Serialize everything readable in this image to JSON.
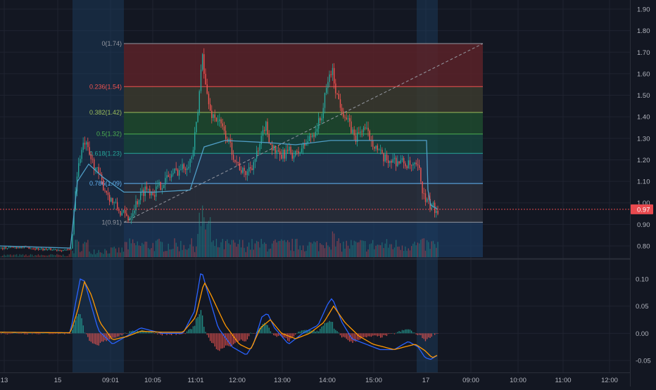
{
  "colors": {
    "background": "#131722",
    "grid": "#1f2330",
    "axis_text": "#b2b5be",
    "candle_up": "#26a69a",
    "candle_down": "#ef5350",
    "vwap": "#4f9dc5",
    "session_shade": "#1d4163",
    "current_price": "#e84a4f",
    "macd_line": "#2962ff",
    "signal_line": "#ff9800",
    "trend_line": "#9598a1"
  },
  "price_axis": {
    "ticks": [
      "1.90",
      "1.80",
      "1.70",
      "1.60",
      "1.50",
      "1.40",
      "1.30",
      "1.20",
      "1.10",
      "1.00",
      "0.90",
      "0.80"
    ],
    "tick_values": [
      1.9,
      1.8,
      1.7,
      1.6,
      1.5,
      1.4,
      1.3,
      1.2,
      1.1,
      1.0,
      0.9,
      0.8
    ]
  },
  "current_price": {
    "label": "0.97",
    "value": 0.97
  },
  "macd_axis": {
    "ticks": [
      "0.10",
      "0.05",
      "0.00",
      "-0.05"
    ],
    "tick_values": [
      0.1,
      0.05,
      0.0,
      -0.05
    ]
  },
  "time_axis": {
    "labels": [
      "13",
      "15",
      "09:01",
      "10:05",
      "11:01",
      "12:00",
      "13:00",
      "14:00",
      "15:00",
      "17",
      "09:00",
      "10:00",
      "11:00",
      "12:00"
    ]
  },
  "fibonacci": {
    "levels": [
      {
        "label": "0(1.74)",
        "ratio": 0,
        "price": 1.74,
        "color": "#9598a1",
        "fill": "#5b2228"
      },
      {
        "label": "0.236(1.54)",
        "ratio": 0.236,
        "price": 1.54,
        "color": "#f05350",
        "fill": "#3b3a2e"
      },
      {
        "label": "0.382(1.42)",
        "ratio": 0.382,
        "price": 1.42,
        "color": "#9bbd5c",
        "fill": "#1f4a2e"
      },
      {
        "label": "0.5(1.32)",
        "ratio": 0.5,
        "price": 1.32,
        "color": "#4caf50",
        "fill": "#17443d"
      },
      {
        "label": "0.618(1.23)",
        "ratio": 0.618,
        "price": 1.23,
        "color": "#26a69a",
        "fill": "#223650"
      },
      {
        "label": "0.786(1.09)",
        "ratio": 0.786,
        "price": 1.09,
        "color": "#64b5f6",
        "fill": "#2a2f3b"
      },
      {
        "label": "1(0.91)",
        "ratio": 1,
        "price": 0.91,
        "color": "#9598a1",
        "fill": ""
      }
    ]
  },
  "chart_data": [
    {
      "type": "candlestick",
      "title": "",
      "y_range": [
        0.74,
        1.94
      ],
      "x_labels": [
        "13",
        "15",
        "09:01",
        "10:05",
        "11:01",
        "12:00",
        "13:00",
        "14:00",
        "15:00",
        "17",
        "09:00",
        "10:00",
        "11:00",
        "12:00"
      ],
      "price_path_keypoints": [
        [
          0,
          0.79
        ],
        [
          30,
          0.795
        ],
        [
          60,
          0.785
        ],
        [
          100,
          0.78
        ],
        [
          104,
          0.95
        ],
        [
          108,
          1.12
        ],
        [
          114,
          1.23
        ],
        [
          120,
          1.28
        ],
        [
          126,
          1.22
        ],
        [
          134,
          1.17
        ],
        [
          146,
          1.08
        ],
        [
          160,
          1.0
        ],
        [
          172,
          0.95
        ],
        [
          182,
          0.93
        ],
        [
          196,
          1.02
        ],
        [
          206,
          1.07
        ],
        [
          218,
          1.05
        ],
        [
          232,
          1.1
        ],
        [
          246,
          1.14
        ],
        [
          262,
          1.17
        ],
        [
          272,
          1.21
        ],
        [
          280,
          1.4
        ],
        [
          287,
          1.71
        ],
        [
          291,
          1.55
        ],
        [
          298,
          1.42
        ],
        [
          310,
          1.38
        ],
        [
          322,
          1.3
        ],
        [
          334,
          1.2
        ],
        [
          346,
          1.13
        ],
        [
          358,
          1.18
        ],
        [
          368,
          1.25
        ],
        [
          376,
          1.37
        ],
        [
          384,
          1.27
        ],
        [
          396,
          1.21
        ],
        [
          408,
          1.24
        ],
        [
          420,
          1.22
        ],
        [
          432,
          1.27
        ],
        [
          446,
          1.33
        ],
        [
          456,
          1.4
        ],
        [
          466,
          1.58
        ],
        [
          471,
          1.62
        ],
        [
          478,
          1.5
        ],
        [
          490,
          1.4
        ],
        [
          504,
          1.3
        ],
        [
          516,
          1.35
        ],
        [
          524,
          1.31
        ],
        [
          532,
          1.27
        ],
        [
          544,
          1.2
        ],
        [
          556,
          1.2
        ],
        [
          570,
          1.19
        ],
        [
          582,
          1.17
        ],
        [
          594,
          1.16
        ],
        [
          602,
          1.02
        ],
        [
          612,
          0.98
        ],
        [
          622,
          0.97
        ]
      ],
      "vwap_keypoints": [
        [
          0,
          0.8
        ],
        [
          100,
          0.79
        ],
        [
          110,
          1.1
        ],
        [
          126,
          1.18
        ],
        [
          146,
          1.12
        ],
        [
          176,
          1.05
        ],
        [
          220,
          1.05
        ],
        [
          270,
          1.06
        ],
        [
          290,
          1.26
        ],
        [
          320,
          1.29
        ],
        [
          380,
          1.28
        ],
        [
          420,
          1.27
        ],
        [
          470,
          1.29
        ],
        [
          530,
          1.29
        ],
        [
          600,
          1.29
        ],
        [
          606,
          1.29
        ],
        [
          608,
          1.06
        ],
        [
          612,
          0.99
        ],
        [
          622,
          0.97
        ]
      ]
    },
    {
      "type": "line",
      "title": "",
      "y_range": [
        -0.062,
        0.126
      ],
      "series": [
        {
          "name": ""
        },
        {
          "name": ""
        }
      ],
      "macd_keypoints": [
        [
          0,
          0.002
        ],
        [
          100,
          0.001
        ],
        [
          108,
          0.06
        ],
        [
          114,
          0.1
        ],
        [
          120,
          0.096
        ],
        [
          130,
          0.05
        ],
        [
          140,
          0.005
        ],
        [
          160,
          -0.02
        ],
        [
          180,
          -0.005
        ],
        [
          200,
          0.01
        ],
        [
          230,
          0.0
        ],
        [
          260,
          0.0
        ],
        [
          276,
          0.04
        ],
        [
          286,
          0.117
        ],
        [
          294,
          0.08
        ],
        [
          310,
          0.01
        ],
        [
          330,
          -0.025
        ],
        [
          350,
          -0.04
        ],
        [
          360,
          -0.02
        ],
        [
          372,
          0.03
        ],
        [
          380,
          0.037
        ],
        [
          390,
          0.01
        ],
        [
          410,
          -0.02
        ],
        [
          430,
          0.0
        ],
        [
          452,
          0.015
        ],
        [
          466,
          0.055
        ],
        [
          472,
          0.065
        ],
        [
          486,
          0.02
        ],
        [
          500,
          -0.01
        ],
        [
          520,
          -0.02
        ],
        [
          540,
          -0.03
        ],
        [
          560,
          -0.03
        ],
        [
          580,
          -0.015
        ],
        [
          594,
          -0.025
        ],
        [
          604,
          -0.045
        ],
        [
          612,
          -0.048
        ],
        [
          622,
          -0.04
        ]
      ],
      "signal_keypoints": [
        [
          0,
          0.002
        ],
        [
          100,
          0.001
        ],
        [
          110,
          0.04
        ],
        [
          120,
          0.095
        ],
        [
          130,
          0.07
        ],
        [
          142,
          0.02
        ],
        [
          160,
          -0.012
        ],
        [
          180,
          -0.006
        ],
        [
          200,
          0.004
        ],
        [
          230,
          0.002
        ],
        [
          260,
          0.002
        ],
        [
          278,
          0.03
        ],
        [
          290,
          0.095
        ],
        [
          300,
          0.07
        ],
        [
          320,
          0.015
        ],
        [
          340,
          -0.02
        ],
        [
          356,
          -0.03
        ],
        [
          370,
          0.01
        ],
        [
          384,
          0.025
        ],
        [
          400,
          0.0
        ],
        [
          420,
          -0.01
        ],
        [
          440,
          0.0
        ],
        [
          460,
          0.02
        ],
        [
          474,
          0.05
        ],
        [
          490,
          0.02
        ],
        [
          510,
          -0.005
        ],
        [
          530,
          -0.02
        ],
        [
          560,
          -0.03
        ],
        [
          590,
          -0.02
        ],
        [
          604,
          -0.032
        ],
        [
          614,
          -0.045
        ],
        [
          622,
          -0.04
        ]
      ]
    }
  ]
}
